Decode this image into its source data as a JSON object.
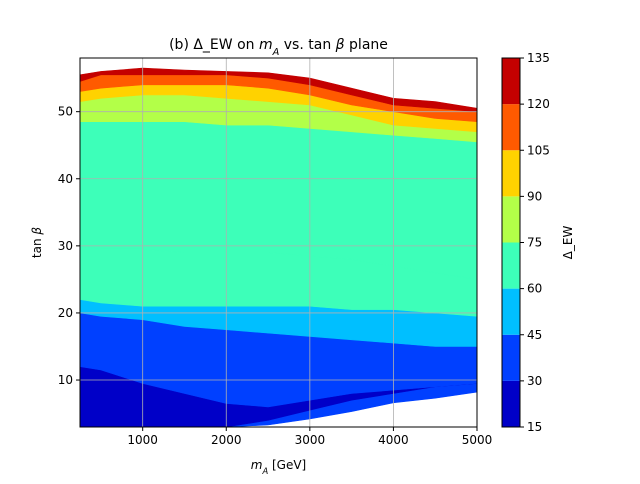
{
  "chart_data": {
    "type": "heatmap",
    "title": "(b) Δ_EW on m_A vs. tan β plane",
    "xlabel": "m_A [GeV]",
    "ylabel": "tan β",
    "xlim": [
      250,
      5000
    ],
    "ylim": [
      3,
      58
    ],
    "x_ticks": [
      1000,
      2000,
      3000,
      4000,
      5000
    ],
    "y_ticks": [
      10,
      20,
      30,
      40,
      50
    ],
    "grid": true,
    "colorbar": {
      "label": "Δ_EW",
      "levels": [
        15,
        30,
        45,
        60,
        75,
        90,
        105,
        120,
        135
      ],
      "colors": [
        "#0000c8",
        "#0040ff",
        "#00bfff",
        "#3dffb9",
        "#b3ff48",
        "#ffd200",
        "#ff5a00",
        "#c40000"
      ]
    },
    "boundaries": {
      "x": [
        250,
        500,
        1000,
        1500,
        2000,
        2500,
        3000,
        3500,
        4000,
        4500,
        5000
      ],
      "lower_edge": [
        3,
        3,
        3,
        3,
        3,
        3.3,
        4.2,
        5.3,
        6.6,
        7.3,
        8.2
      ],
      "b30_45_low": [
        3,
        3,
        3,
        3,
        3,
        4,
        5.5,
        7,
        8,
        9,
        9.5
      ],
      "b15_30": [
        12,
        11.5,
        9.5,
        8,
        6.5,
        6,
        7,
        8,
        8.5,
        9,
        9.5
      ],
      "b30_45_high": [
        20,
        19.5,
        19,
        18,
        17.5,
        17,
        16.5,
        16,
        15.5,
        15,
        15
      ],
      "b45_60": [
        22,
        21.5,
        21,
        21,
        21,
        21,
        21,
        20.5,
        20.5,
        20,
        19.5
      ],
      "b60_75": [
        30,
        29.5,
        29.5,
        29,
        29,
        29,
        28.5,
        28,
        27,
        26,
        25
      ],
      "b75_90": [
        48.5,
        48.5,
        48.5,
        48.5,
        48,
        48,
        47.5,
        47,
        46.5,
        46,
        45.5
      ],
      "b90_105": [
        51.5,
        52,
        52.5,
        52.5,
        52,
        51.5,
        51,
        49.5,
        48,
        47.5,
        47
      ],
      "b105_120": [
        53,
        53.5,
        54,
        54,
        54,
        53.5,
        52.5,
        51,
        50,
        49,
        48.5
      ],
      "b120_135": [
        54.5,
        55.5,
        55.5,
        55.5,
        55.5,
        55,
        54,
        52.5,
        51,
        50.5,
        50
      ],
      "upper_edge": [
        55.5,
        56,
        56.5,
        56.2,
        56,
        55.8,
        55,
        53.5,
        52,
        51.5,
        50.5
      ]
    }
  }
}
